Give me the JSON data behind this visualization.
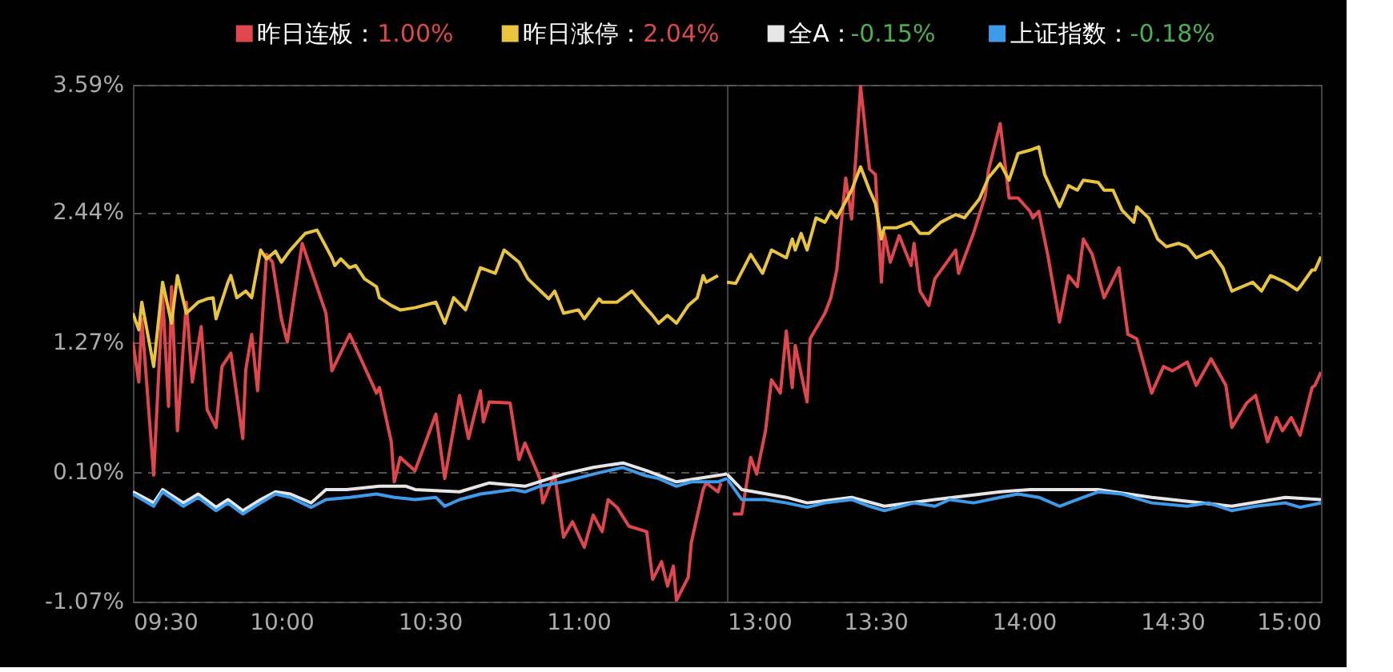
{
  "chart_data": [
    {
      "type": "line",
      "legend": "top",
      "grid": "y",
      "line_style": "solid",
      "marker": "none",
      "xlim": [
        9.5,
        11.5
      ],
      "xticks": [
        {
          "value": 9.5,
          "label": "09:30"
        },
        {
          "value": 10,
          "label": "10:00"
        },
        {
          "value": 10.5,
          "label": "10:30"
        },
        {
          "value": 11,
          "label": "11:00"
        }
      ],
      "ylim": [
        -1.07,
        3.59
      ],
      "yticks": [
        {
          "value": -1.07,
          "label": "-1.07%"
        },
        {
          "value": 0.1,
          "label": "0.10%"
        },
        {
          "value": 1.27,
          "label": "1.27%"
        },
        {
          "value": 2.44,
          "label": "2.44%"
        },
        {
          "value": 3.59,
          "label": "3.59%"
        }
      ],
      "annotations": [
        "1.00%",
        "2.04%",
        "-0.15%",
        "-0.18%"
      ],
      "series": [
        {
          "name": "昨日连板：",
          "color": "#e0474c",
          "x": [
            9.5,
            9.52,
            9.53,
            9.57,
            9.6,
            9.62,
            9.63,
            9.65,
            9.68,
            9.7,
            9.73,
            9.75,
            9.78,
            9.8,
            9.83,
            9.87,
            9.88,
            9.9,
            9.92,
            9.95,
            9.97,
            10.0,
            10.02,
            10.07,
            10.15,
            10.17,
            10.23,
            10.32,
            10.33,
            10.37,
            10.38,
            10.4,
            10.45,
            10.52,
            10.55,
            10.6,
            10.63,
            10.67,
            10.68,
            10.7,
            10.77,
            10.8,
            10.82,
            10.87,
            10.88,
            10.92,
            10.95,
            10.98,
            11.02,
            11.05,
            11.08,
            11.1,
            11.13,
            11.17,
            11.23,
            11.25,
            11.28,
            11.3,
            11.32,
            11.33,
            11.37,
            11.38,
            11.42,
            11.43,
            11.47,
            11.48
          ],
          "values": [
            1.27,
            0.91,
            1.48,
            0.07,
            1.7,
            0.69,
            1.77,
            0.47,
            1.63,
            0.91,
            1.41,
            0.66,
            0.5,
            1.05,
            1.17,
            0.4,
            1.02,
            1.34,
            0.83,
            2.06,
            1.99,
            1.48,
            1.27,
            2.16,
            1.53,
            1.01,
            1.34,
            0.81,
            0.86,
            0.37,
            0.01,
            0.23,
            0.11,
            0.62,
            0.04,
            0.79,
            0.4,
            0.83,
            0.55,
            0.73,
            0.72,
            0.21,
            0.36,
            0.04,
            -0.18,
            0.08,
            -0.49,
            -0.35,
            -0.58,
            -0.29,
            -0.44,
            -0.15,
            -0.22,
            -0.39,
            -0.44,
            -0.87,
            -0.71,
            -0.93,
            -0.75,
            -1.06,
            -0.85,
            -0.54,
            -0.06,
            0.0,
            -0.08,
            0.0
          ]
        },
        {
          "name": "昨日涨停：",
          "color": "#e8c440",
          "x": [
            9.5,
            9.52,
            9.53,
            9.57,
            9.6,
            9.63,
            9.65,
            9.68,
            9.72,
            9.75,
            9.77,
            9.78,
            9.82,
            9.83,
            9.85,
            9.88,
            9.9,
            9.93,
            9.95,
            9.98,
            10.0,
            10.03,
            10.08,
            10.12,
            10.15,
            10.17,
            10.18,
            10.2,
            10.23,
            10.25,
            10.28,
            10.32,
            10.33,
            10.37,
            10.4,
            10.45,
            10.52,
            10.55,
            10.58,
            10.62,
            10.67,
            10.72,
            10.75,
            10.8,
            10.83,
            10.9,
            10.92,
            10.95,
            11.0,
            11.02,
            11.07,
            11.08,
            11.13,
            11.18,
            11.22,
            11.25,
            11.27,
            11.3,
            11.33,
            11.37,
            11.4,
            11.42,
            11.43,
            11.47
          ],
          "values": [
            1.53,
            1.38,
            1.63,
            1.05,
            1.81,
            1.44,
            1.87,
            1.53,
            1.63,
            1.66,
            1.67,
            1.48,
            1.81,
            1.87,
            1.67,
            1.73,
            1.67,
            2.1,
            2.02,
            2.09,
            1.99,
            2.1,
            2.25,
            2.28,
            2.13,
            2.03,
            1.96,
            2.02,
            1.94,
            1.96,
            1.84,
            1.77,
            1.67,
            1.6,
            1.56,
            1.58,
            1.63,
            1.44,
            1.67,
            1.56,
            1.94,
            1.89,
            2.1,
            1.99,
            1.84,
            1.66,
            1.73,
            1.53,
            1.56,
            1.48,
            1.66,
            1.63,
            1.63,
            1.73,
            1.6,
            1.51,
            1.44,
            1.51,
            1.44,
            1.6,
            1.67,
            1.87,
            1.81,
            1.87
          ]
        },
        {
          "name": "全A：",
          "color": "#e6e6e6",
          "x": [
            9.5,
            9.57,
            9.6,
            9.67,
            9.72,
            9.78,
            9.82,
            9.87,
            9.93,
            9.98,
            10.03,
            10.1,
            10.15,
            10.22,
            10.33,
            10.42,
            10.45,
            10.6,
            10.7,
            10.82,
            10.95,
            11.05,
            11.15,
            11.23,
            11.33,
            11.5
          ],
          "values": [
            -0.08,
            -0.18,
            -0.06,
            -0.18,
            -0.1,
            -0.22,
            -0.15,
            -0.25,
            -0.15,
            -0.08,
            -0.1,
            -0.18,
            -0.06,
            -0.06,
            -0.03,
            -0.03,
            -0.06,
            -0.08,
            0.0,
            -0.03,
            0.08,
            0.14,
            0.18,
            0.11,
            0.01,
            0.08
          ]
        },
        {
          "name": "上证指数：",
          "color": "#3d9be9",
          "x": [
            9.5,
            9.57,
            9.6,
            9.67,
            9.72,
            9.78,
            9.82,
            9.87,
            9.93,
            9.98,
            10.03,
            10.1,
            10.15,
            10.23,
            10.32,
            10.38,
            10.45,
            10.52,
            10.55,
            10.6,
            10.67,
            10.78,
            10.82,
            10.87,
            10.95,
            11.05,
            11.1,
            11.15,
            11.22,
            11.27,
            11.33,
            11.38,
            11.47,
            11.5
          ],
          "values": [
            -0.1,
            -0.21,
            -0.08,
            -0.21,
            -0.13,
            -0.25,
            -0.18,
            -0.28,
            -0.18,
            -0.1,
            -0.13,
            -0.22,
            -0.15,
            -0.13,
            -0.1,
            -0.13,
            -0.15,
            -0.13,
            -0.21,
            -0.15,
            -0.1,
            -0.06,
            -0.08,
            -0.03,
            0.01,
            0.08,
            0.11,
            0.14,
            0.07,
            0.04,
            -0.03,
            0.01,
            0.01,
            0.04
          ]
        }
      ]
    },
    {
      "type": "line",
      "grid": "y",
      "line_style": "solid",
      "marker": "none",
      "tick_labels": "x",
      "xlim": [
        13,
        15
      ],
      "xticks": [
        {
          "value": 13,
          "label": "13:00"
        },
        {
          "value": 13.5,
          "label": "13:30"
        },
        {
          "value": 14,
          "label": "14:00"
        },
        {
          "value": 14.5,
          "label": "14:30"
        },
        {
          "value": 15,
          "label": "15:00"
        }
      ],
      "ylim": [
        -1.07,
        3.59
      ],
      "yticks": [
        {
          "value": -1.07,
          "label": null
        },
        {
          "value": 0.1,
          "label": null
        },
        {
          "value": 1.27,
          "label": null
        },
        {
          "value": 2.44,
          "label": null
        },
        {
          "value": 3.59,
          "label": null
        }
      ],
      "series": [
        {
          "color": "#e0474c",
          "x": [
            13.02,
            13.05,
            13.08,
            13.1,
            13.13,
            13.15,
            13.18,
            13.2,
            13.22,
            13.23,
            13.27,
            13.28,
            13.33,
            13.35,
            13.37,
            13.4,
            13.42,
            13.45,
            13.48,
            13.5,
            13.52,
            13.53,
            13.55,
            13.58,
            13.62,
            13.63,
            13.65,
            13.68,
            13.7,
            13.77,
            13.78,
            13.83,
            13.87,
            13.88,
            13.92,
            13.95,
            13.98,
            14.02,
            14.03,
            14.05,
            14.08,
            14.12,
            14.15,
            14.18,
            14.2,
            14.23,
            14.27,
            14.32,
            14.35,
            14.38,
            14.43,
            14.47,
            14.5,
            14.55,
            14.58,
            14.63,
            14.68,
            14.7,
            14.75,
            14.78,
            14.82,
            14.85,
            14.87,
            14.9,
            14.93,
            14.97,
            14.98,
            15.0
          ],
          "values": [
            -0.28,
            -0.28,
            0.23,
            0.08,
            0.47,
            0.93,
            0.81,
            1.37,
            0.86,
            1.24,
            0.73,
            1.3,
            1.53,
            1.67,
            1.92,
            2.75,
            2.38,
            3.58,
            2.83,
            2.78,
            1.81,
            2.25,
            1.99,
            2.23,
            1.96,
            2.16,
            1.73,
            1.6,
            1.84,
            2.1,
            1.89,
            2.25,
            2.59,
            2.81,
            3.24,
            2.57,
            2.57,
            2.45,
            2.39,
            2.45,
            2.06,
            1.45,
            1.87,
            1.77,
            2.2,
            2.06,
            1.67,
            1.94,
            1.34,
            1.3,
            0.81,
            1.05,
            1.01,
            1.09,
            0.88,
            1.12,
            0.88,
            0.5,
            0.72,
            0.79,
            0.37,
            0.59,
            0.47,
            0.59,
            0.43,
            0.86,
            0.88,
            1.0
          ]
        },
        {
          "color": "#e8c440",
          "x": [
            13.0,
            13.03,
            13.08,
            13.12,
            13.15,
            13.2,
            13.22,
            13.23,
            13.25,
            13.27,
            13.3,
            13.33,
            13.35,
            13.37,
            13.42,
            13.45,
            13.48,
            13.5,
            13.52,
            13.53,
            13.57,
            13.62,
            13.65,
            13.68,
            13.72,
            13.77,
            13.8,
            13.85,
            13.88,
            13.92,
            13.95,
            13.98,
            14.02,
            14.05,
            14.07,
            14.12,
            14.15,
            14.18,
            14.2,
            14.25,
            14.27,
            14.3,
            14.33,
            14.37,
            14.38,
            14.42,
            14.45,
            14.48,
            14.52,
            14.55,
            14.58,
            14.63,
            14.67,
            14.7,
            14.77,
            14.8,
            14.83,
            14.88,
            14.92,
            14.93,
            14.97,
            14.98,
            15.0
          ],
          "values": [
            1.81,
            1.8,
            2.06,
            1.89,
            2.1,
            2.03,
            2.2,
            2.1,
            2.25,
            2.1,
            2.39,
            2.35,
            2.45,
            2.39,
            2.64,
            2.85,
            2.64,
            2.52,
            2.2,
            2.3,
            2.3,
            2.35,
            2.25,
            2.25,
            2.35,
            2.42,
            2.39,
            2.56,
            2.75,
            2.88,
            2.73,
            2.97,
            3.0,
            3.03,
            2.78,
            2.49,
            2.68,
            2.64,
            2.73,
            2.71,
            2.64,
            2.64,
            2.46,
            2.35,
            2.49,
            2.39,
            2.2,
            2.13,
            2.16,
            2.13,
            2.03,
            2.09,
            1.94,
            1.73,
            1.81,
            1.73,
            1.87,
            1.81,
            1.74,
            1.77,
            1.92,
            1.92,
            2.04
          ]
        },
        {
          "color": "#e6e6e6",
          "x": [
            13.0,
            13.05,
            13.2,
            13.27,
            13.42,
            13.53,
            13.7,
            13.92,
            14.02,
            14.25,
            14.43,
            14.7,
            14.88,
            15.0
          ],
          "values": [
            0.08,
            -0.06,
            -0.13,
            -0.18,
            -0.13,
            -0.21,
            -0.15,
            -0.08,
            -0.06,
            -0.06,
            -0.13,
            -0.21,
            -0.13,
            -0.15
          ]
        },
        {
          "color": "#3d9be9",
          "x": [
            13.0,
            13.05,
            13.13,
            13.2,
            13.27,
            13.33,
            13.42,
            13.48,
            13.53,
            13.63,
            13.7,
            13.75,
            13.83,
            13.92,
            13.98,
            14.05,
            14.12,
            14.18,
            14.25,
            14.33,
            14.43,
            14.55,
            14.62,
            14.7,
            14.78,
            14.88,
            14.93,
            15.0
          ],
          "values": [
            0.04,
            -0.15,
            -0.15,
            -0.18,
            -0.22,
            -0.18,
            -0.15,
            -0.21,
            -0.25,
            -0.18,
            -0.21,
            -0.15,
            -0.18,
            -0.13,
            -0.1,
            -0.13,
            -0.21,
            -0.15,
            -0.08,
            -0.1,
            -0.18,
            -0.21,
            -0.18,
            -0.25,
            -0.21,
            -0.18,
            -0.22,
            -0.18
          ]
        }
      ]
    }
  ]
}
